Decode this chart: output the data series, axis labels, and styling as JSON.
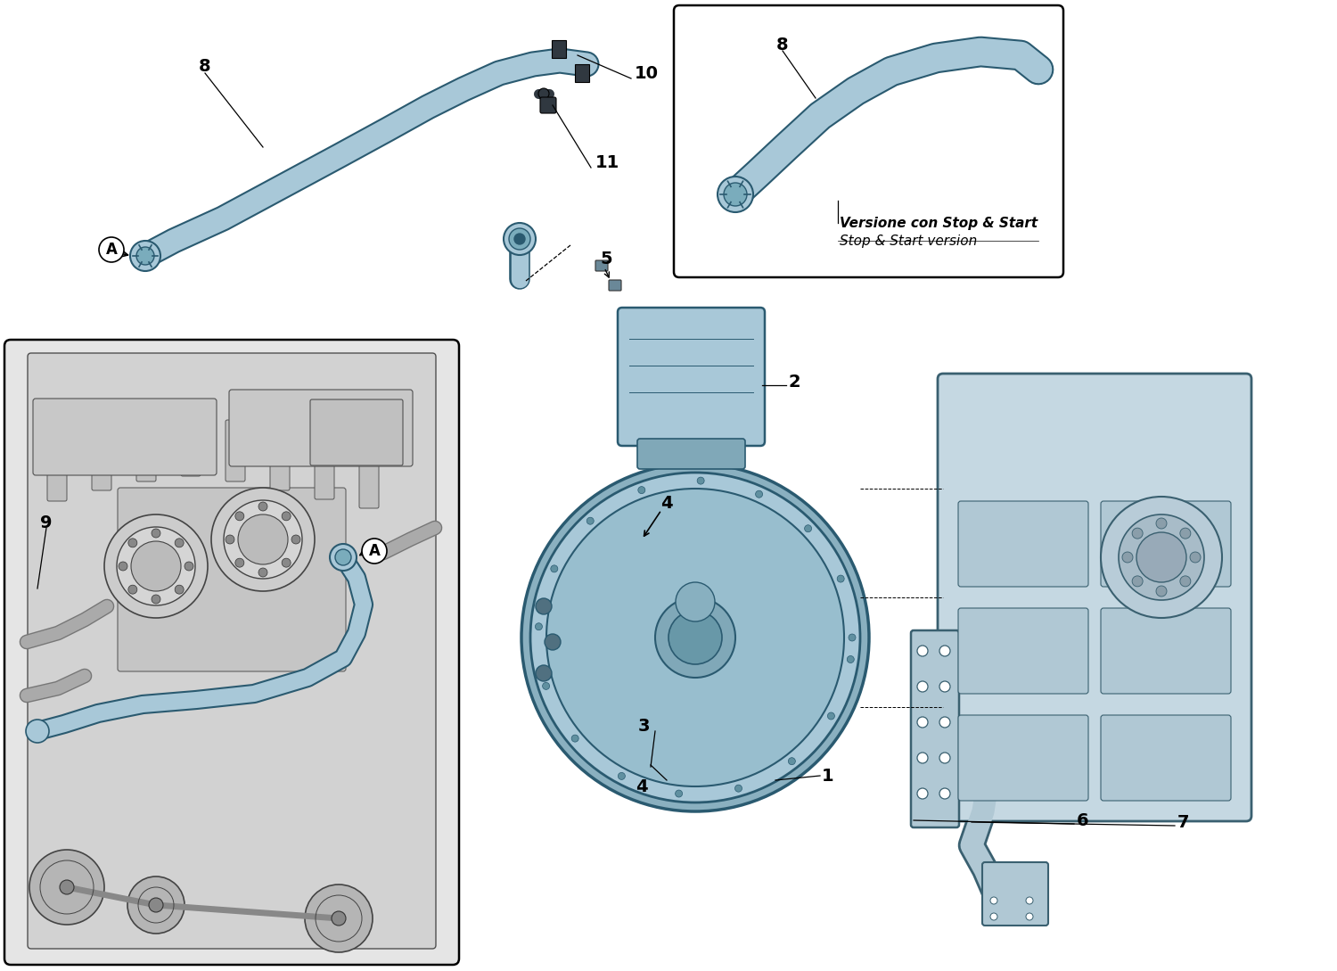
{
  "bg_color": "#ffffff",
  "hose_fill": "#a8c8d8",
  "hose_edge": "#2a5a70",
  "part_fill": "#b0ccd8",
  "part_edge": "#3a6070",
  "dark_part": "#303840",
  "text_color": "#000000",
  "note_it": "Versione con Stop & Start",
  "note_en": "Stop & Start version"
}
